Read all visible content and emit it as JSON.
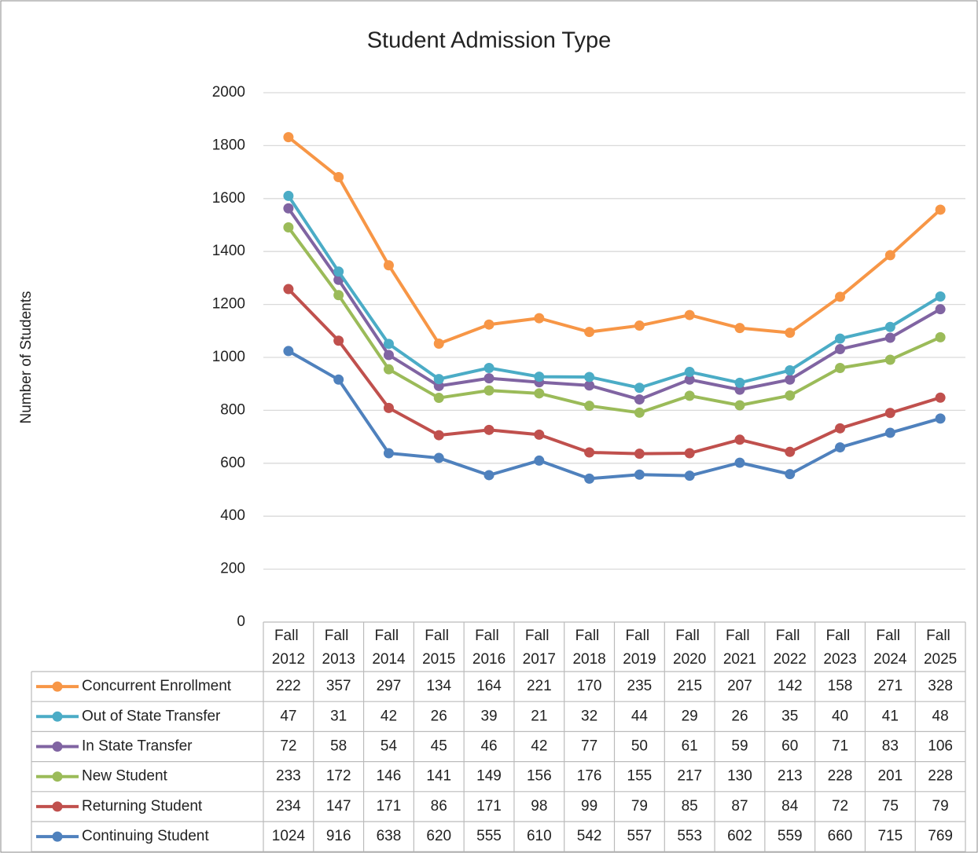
{
  "chart_data": {
    "type": "line",
    "stacked": true,
    "title": "Student Admission Type",
    "y_label": "Number of Students",
    "categories": [
      "Fall 2012",
      "Fall 2013",
      "Fall 2014",
      "Fall 2015",
      "Fall 2016",
      "Fall 2017",
      "Fall 2018",
      "Fall 2019",
      "Fall 2020",
      "Fall 2021",
      "Fall 2022",
      "Fall 2023",
      "Fall 2024",
      "Fall 2025"
    ],
    "ylim": [
      0,
      2000
    ],
    "yticks": [
      0,
      200,
      400,
      600,
      800,
      1000,
      1200,
      1400,
      1600,
      1800,
      2000
    ],
    "grid": true,
    "series": [
      {
        "name": "Concurrent Enrollment",
        "color": "#f79646",
        "values": [
          222,
          357,
          297,
          134,
          164,
          221,
          170,
          235,
          215,
          207,
          142,
          158,
          271,
          328
        ]
      },
      {
        "name": "Out of State Transfer",
        "color": "#4bacc6",
        "values": [
          47,
          31,
          42,
          26,
          39,
          21,
          32,
          44,
          29,
          26,
          35,
          40,
          41,
          48
        ]
      },
      {
        "name": "In State Transfer",
        "color": "#8064a2",
        "values": [
          72,
          58,
          54,
          45,
          46,
          42,
          77,
          50,
          61,
          59,
          60,
          71,
          83,
          106
        ]
      },
      {
        "name": "New Student",
        "color": "#9bbb59",
        "values": [
          233,
          172,
          146,
          141,
          149,
          156,
          176,
          155,
          217,
          130,
          213,
          228,
          201,
          228
        ]
      },
      {
        "name": "Returning Student",
        "color": "#c0504d",
        "values": [
          234,
          147,
          171,
          86,
          171,
          98,
          99,
          79,
          85,
          87,
          84,
          72,
          75,
          79
        ]
      },
      {
        "name": "Continuing Student",
        "color": "#4f81bd",
        "values": [
          1024,
          916,
          638,
          620,
          555,
          610,
          542,
          557,
          553,
          602,
          559,
          660,
          715,
          769
        ]
      }
    ]
  }
}
